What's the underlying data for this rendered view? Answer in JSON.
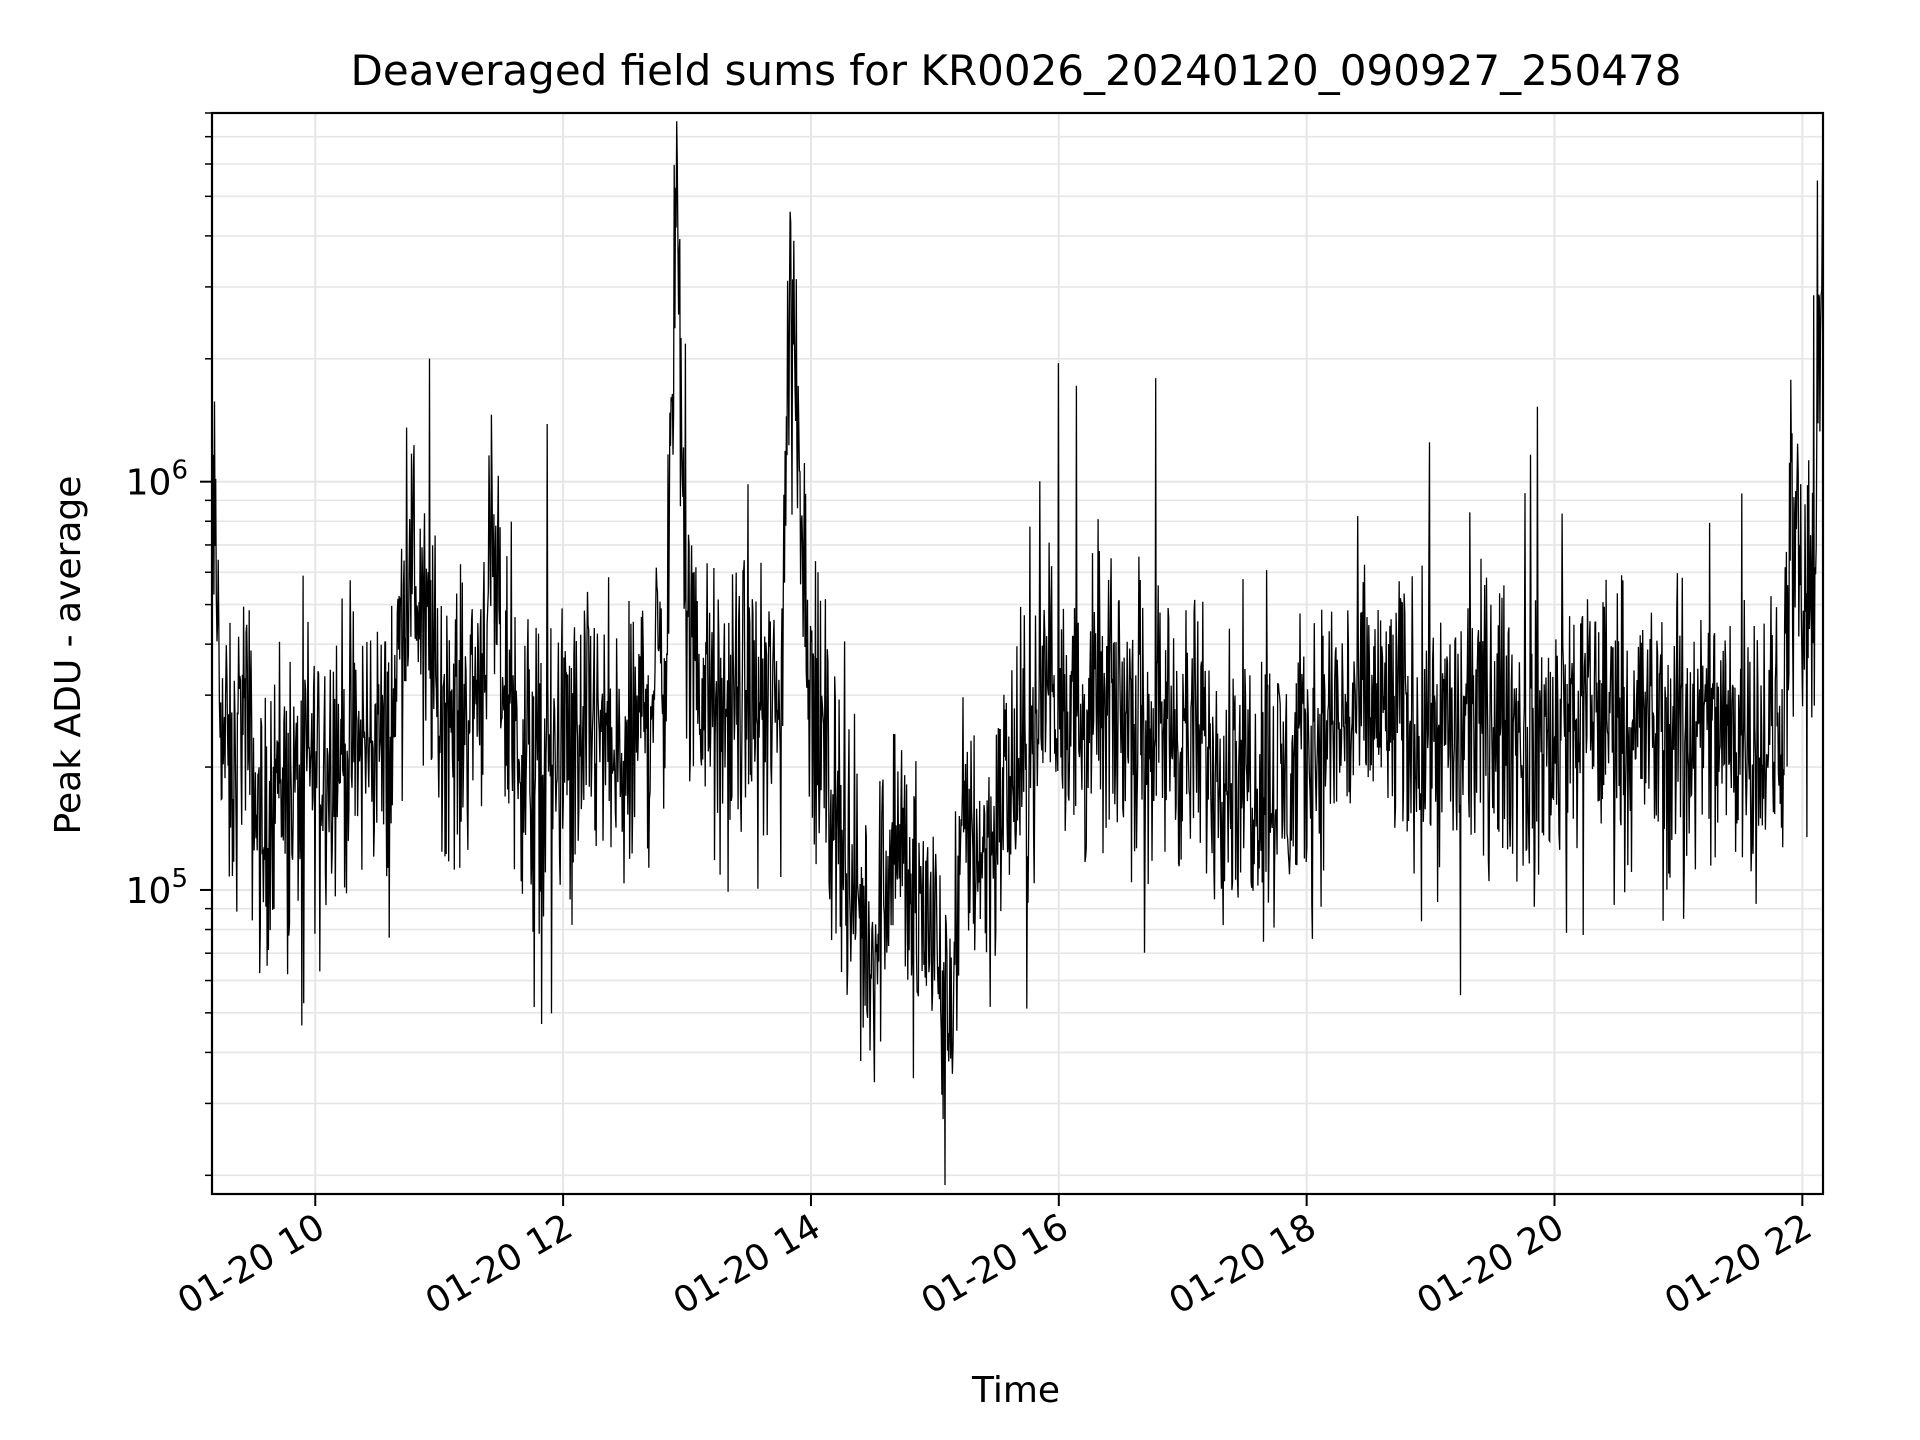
{
  "chart_data": {
    "type": "line",
    "title": "Deaveraged field sums for KR0026_20240120_090927_250478",
    "xlabel": "Time",
    "ylabel": "Peak ADU - average",
    "xlim": [
      "2024-01-20 09:10",
      "2024-01-20 22:10"
    ],
    "ylim": [
      18000,
      8000000
    ],
    "yscale": "log",
    "grid": true,
    "x_ticks": [
      {
        "time": "2024-01-20 10:00",
        "label": "01-20 10"
      },
      {
        "time": "2024-01-20 12:00",
        "label": "01-20 12"
      },
      {
        "time": "2024-01-20 14:00",
        "label": "01-20 14"
      },
      {
        "time": "2024-01-20 16:00",
        "label": "01-20 16"
      },
      {
        "time": "2024-01-20 18:00",
        "label": "01-20 18"
      },
      {
        "time": "2024-01-20 20:00",
        "label": "01-20 20"
      },
      {
        "time": "2024-01-20 22:00",
        "label": "01-20 22"
      }
    ],
    "y_ticks": [
      {
        "value": 100000,
        "base": "10",
        "exp": "5"
      },
      {
        "value": 1000000,
        "base": "10",
        "exp": "6"
      }
    ],
    "line_color": "#000000",
    "series": [
      {
        "x": [
          "2024-01-20 09:10",
          "2024-01-20 09:15",
          "2024-01-20 09:20",
          "2024-01-20 09:25",
          "2024-01-20 09:30",
          "2024-01-20 09:35",
          "2024-01-20 09:40",
          "2024-01-20 09:45",
          "2024-01-20 09:50",
          "2024-01-20 09:55",
          "2024-01-20 10:00",
          "2024-01-20 10:10",
          "2024-01-20 10:20",
          "2024-01-20 10:30",
          "2024-01-20 10:35",
          "2024-01-20 10:45",
          "2024-01-20 11:00",
          "2024-01-20 11:10",
          "2024-01-20 11:20",
          "2024-01-20 11:25",
          "2024-01-20 11:35",
          "2024-01-20 11:45",
          "2024-01-20 12:00",
          "2024-01-20 12:15",
          "2024-01-20 12:30",
          "2024-01-20 12:40",
          "2024-01-20 12:50",
          "2024-01-20 12:55",
          "2024-01-20 13:00",
          "2024-01-20 13:15",
          "2024-01-20 13:30",
          "2024-01-20 13:45",
          "2024-01-20 13:50",
          "2024-01-20 14:00",
          "2024-01-20 14:10",
          "2024-01-20 14:20",
          "2024-01-20 14:30",
          "2024-01-20 14:40",
          "2024-01-20 14:50",
          "2024-01-20 15:00",
          "2024-01-20 15:05",
          "2024-01-20 15:15",
          "2024-01-20 15:25",
          "2024-01-20 15:35",
          "2024-01-20 15:45",
          "2024-01-20 15:55",
          "2024-01-20 16:10",
          "2024-01-20 16:30",
          "2024-01-20 16:50",
          "2024-01-20 17:10",
          "2024-01-20 17:30",
          "2024-01-20 17:50",
          "2024-01-20 18:10",
          "2024-01-20 18:30",
          "2024-01-20 18:50",
          "2024-01-20 19:10",
          "2024-01-20 19:30",
          "2024-01-20 19:50",
          "2024-01-20 20:10",
          "2024-01-20 20:30",
          "2024-01-20 20:50",
          "2024-01-20 21:10",
          "2024-01-20 21:30",
          "2024-01-20 21:45",
          "2024-01-20 21:50",
          "2024-01-20 21:55",
          "2024-01-20 22:00",
          "2024-01-20 22:05",
          "2024-01-20 22:10"
        ],
        "y": [
          1000000,
          250000,
          170000,
          300000,
          180000,
          120000,
          200000,
          190000,
          160000,
          210000,
          200000,
          230000,
          210000,
          250000,
          190000,
          700000,
          300000,
          250000,
          350000,
          600000,
          240000,
          200000,
          210000,
          250000,
          180000,
          300000,
          380000,
          5000000,
          400000,
          250000,
          300000,
          260000,
          3500000,
          300000,
          180000,
          100000,
          70000,
          150000,
          90000,
          80000,
          40000,
          150000,
          120000,
          180000,
          200000,
          350000,
          250000,
          280000,
          260000,
          220000,
          200000,
          180000,
          250000,
          280000,
          260000,
          240000,
          270000,
          220000,
          260000,
          280000,
          240000,
          230000,
          250000,
          230000,
          240000,
          800000,
          500000,
          450000,
          6000000
        ]
      }
    ]
  }
}
